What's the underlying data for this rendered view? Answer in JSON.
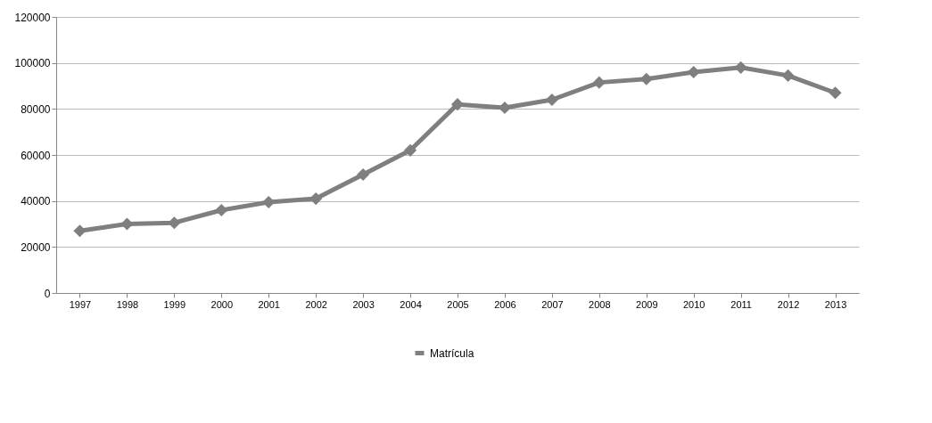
{
  "chart_data": {
    "type": "line",
    "categories": [
      "1997",
      "1998",
      "1999",
      "2000",
      "2001",
      "2002",
      "2003",
      "2004",
      "2005",
      "2006",
      "2007",
      "2008",
      "2009",
      "2010",
      "2011",
      "2012",
      "2013"
    ],
    "series": [
      {
        "name": "Matrícula",
        "color": "#7f7f7f",
        "values": [
          27000,
          30000,
          30500,
          36000,
          39500,
          41000,
          51500,
          62000,
          82000,
          80500,
          84000,
          91500,
          93000,
          96000,
          98000,
          94500,
          87000
        ]
      }
    ],
    "ylim": [
      0,
      120000
    ],
    "yticks": [
      0,
      20000,
      40000,
      60000,
      80000,
      100000,
      120000
    ],
    "grid": "y",
    "legend": "bottom",
    "marker": "diamond",
    "line_style": "solid"
  }
}
